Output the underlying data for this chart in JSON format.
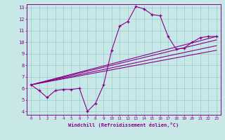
{
  "title": "",
  "xlabel": "Windchill (Refroidissement éolien,°C)",
  "bg_color": "#c8e8e8",
  "line_color": "#880088",
  "grid_color": "#99cccc",
  "curve_x": [
    0,
    1,
    2,
    3,
    4,
    5,
    6,
    7,
    8,
    9,
    10,
    11,
    12,
    13,
    14,
    15,
    16,
    17,
    18,
    19,
    20,
    21,
    22,
    23
  ],
  "curve_y": [
    6.3,
    5.8,
    5.2,
    5.8,
    5.9,
    5.9,
    6.0,
    4.0,
    4.7,
    6.3,
    9.3,
    11.4,
    11.8,
    13.1,
    12.9,
    12.4,
    12.3,
    10.5,
    9.4,
    9.5,
    10.0,
    10.4,
    10.5,
    10.5
  ],
  "line1_x": [
    0,
    23
  ],
  "line1_y": [
    6.3,
    10.5
  ],
  "line2_x": [
    0,
    23
  ],
  "line2_y": [
    6.3,
    10.2
  ],
  "line3_x": [
    0,
    23
  ],
  "line3_y": [
    6.3,
    9.7
  ],
  "line4_x": [
    0,
    23
  ],
  "line4_y": [
    6.3,
    9.3
  ],
  "xmin": -0.5,
  "xmax": 23.5,
  "ymin": 3.7,
  "ymax": 13.3,
  "xticks": [
    0,
    1,
    2,
    3,
    4,
    5,
    6,
    7,
    8,
    9,
    10,
    11,
    12,
    13,
    14,
    15,
    16,
    17,
    18,
    19,
    20,
    21,
    22,
    23
  ],
  "yticks": [
    4,
    5,
    6,
    7,
    8,
    9,
    10,
    11,
    12,
    13
  ]
}
